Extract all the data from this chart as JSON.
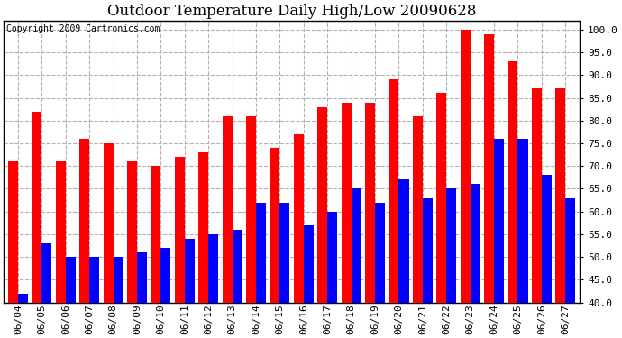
{
  "title": "Outdoor Temperature Daily High/Low 20090628",
  "copyright": "Copyright 2009 Cartronics.com",
  "ylim": [
    40.0,
    102.0
  ],
  "yticks": [
    40.0,
    45.0,
    50.0,
    55.0,
    60.0,
    65.0,
    70.0,
    75.0,
    80.0,
    85.0,
    90.0,
    95.0,
    100.0
  ],
  "background_color": "#ffffff",
  "grid_color": "#b0b0b0",
  "categories": [
    "06/04",
    "06/05",
    "06/06",
    "06/07",
    "06/08",
    "06/09",
    "06/10",
    "06/11",
    "06/12",
    "06/13",
    "06/14",
    "06/15",
    "06/16",
    "06/17",
    "06/18",
    "06/19",
    "06/20",
    "06/21",
    "06/22",
    "06/23",
    "06/24",
    "06/25",
    "06/26",
    "06/27"
  ],
  "highs": [
    71,
    82,
    71,
    76,
    75,
    71,
    70,
    72,
    73,
    81,
    81,
    74,
    77,
    83,
    84,
    84,
    89,
    81,
    86,
    100,
    99,
    93,
    87,
    87
  ],
  "lows": [
    42,
    53,
    50,
    50,
    50,
    51,
    52,
    54,
    55,
    56,
    62,
    62,
    57,
    60,
    65,
    62,
    67,
    63,
    65,
    66,
    76,
    76,
    68,
    63
  ],
  "high_color": "#ff0000",
  "low_color": "#0000ff",
  "bar_width": 0.42,
  "title_fontsize": 12,
  "tick_fontsize": 8,
  "copyright_fontsize": 7
}
